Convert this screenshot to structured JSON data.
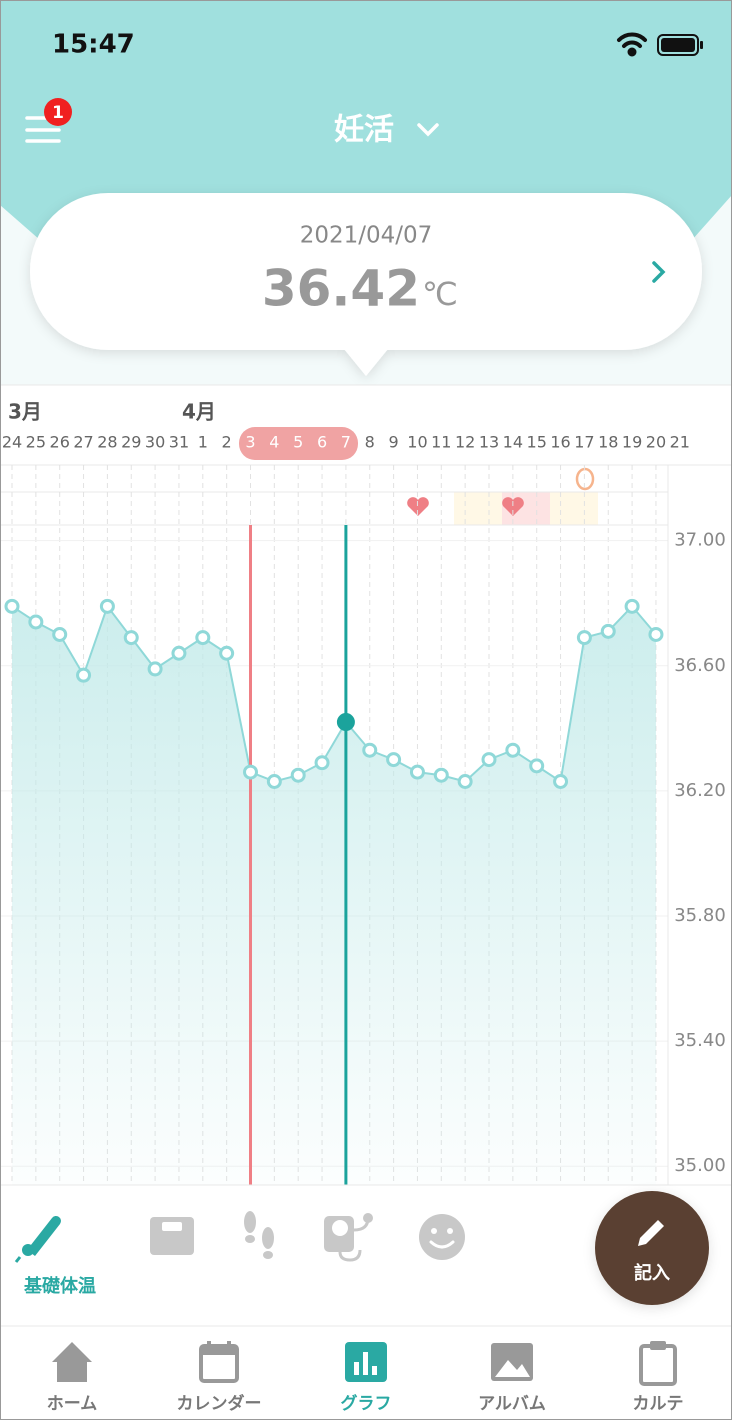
{
  "status_bar": {
    "time": "15:47"
  },
  "header": {
    "title": "妊活",
    "badge": "1"
  },
  "summary": {
    "date": "2021/04/07",
    "temperature": "36.42",
    "unit": "℃"
  },
  "chart_data": {
    "type": "line",
    "months": [
      "3月",
      "4月"
    ],
    "categories": [
      "24",
      "25",
      "26",
      "27",
      "28",
      "29",
      "30",
      "31",
      "1",
      "2",
      "3",
      "4",
      "5",
      "6",
      "7",
      "8",
      "9",
      "10",
      "11",
      "12",
      "13",
      "14",
      "15",
      "16",
      "17",
      "18",
      "19",
      "20",
      "21"
    ],
    "series": [
      {
        "color": "#8fd8d8",
        "values": [
          36.79,
          36.74,
          36.7,
          36.57,
          36.79,
          36.69,
          36.59,
          36.64,
          36.69,
          36.64,
          36.26,
          36.23,
          36.25,
          36.29,
          36.42,
          36.33,
          36.3,
          36.26,
          36.25,
          36.23,
          36.3,
          36.33,
          36.28,
          36.23,
          36.69,
          36.71,
          36.79,
          36.7,
          null
        ]
      }
    ],
    "ylim": [
      34.94,
      37.05
    ],
    "yticks": [
      {
        "value": 37,
        "label": "37.00"
      },
      {
        "value": 36.6,
        "label": "36.60"
      },
      {
        "value": 36.2,
        "label": "36.20"
      },
      {
        "value": 35.8,
        "label": "35.80"
      },
      {
        "value": 35.4,
        "label": "35.40"
      },
      {
        "value": 35,
        "label": "35.00"
      }
    ],
    "grid": true
  },
  "tools": {
    "active_label": "基礎体温",
    "fab_label": "記入"
  },
  "nav": {
    "items": [
      "ホーム",
      "カレンダー",
      "グラフ",
      "アルバム",
      "カルテ"
    ]
  }
}
